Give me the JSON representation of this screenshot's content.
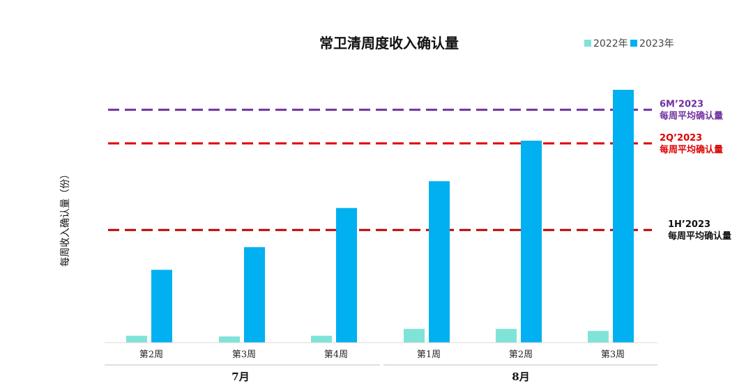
{
  "chart_data": {
    "type": "bar",
    "title": "常卫清周度收入确认量",
    "ylabel": "每周收入确认量（份）",
    "xlabel": "",
    "categories": [
      "第2周",
      "第3周",
      "第4周",
      "第1周",
      "第2周",
      "第3周"
    ],
    "groups": [
      {
        "label": "7月",
        "span": [
          0,
          2
        ]
      },
      {
        "label": "8月",
        "span": [
          3,
          5
        ]
      }
    ],
    "ylim": [
      0,
      370
    ],
    "grid": false,
    "legend_position": "top-right",
    "series": [
      {
        "name": "2022年",
        "color": "#7fe3d8",
        "values": [
          10,
          9,
          10,
          20,
          20,
          17
        ]
      },
      {
        "name": "2023年",
        "color": "#00b0f0",
        "values": [
          106,
          139,
          196,
          235,
          294,
          368
        ]
      }
    ],
    "reference_lines": [
      {
        "line1": "6M’2023",
        "line2": "每周平均确认量",
        "value": 339,
        "color": "#7030a0",
        "text_color": "#7030a0"
      },
      {
        "line1": "2Q’2023",
        "line2": "每周平均确认量",
        "value": 290,
        "color": "#e00000",
        "text_color": "#e00000"
      },
      {
        "line1": "1H’2023",
        "line2": "每周平均确认量",
        "value": 164,
        "color": "#c00000",
        "text_color": "#111111"
      }
    ]
  }
}
